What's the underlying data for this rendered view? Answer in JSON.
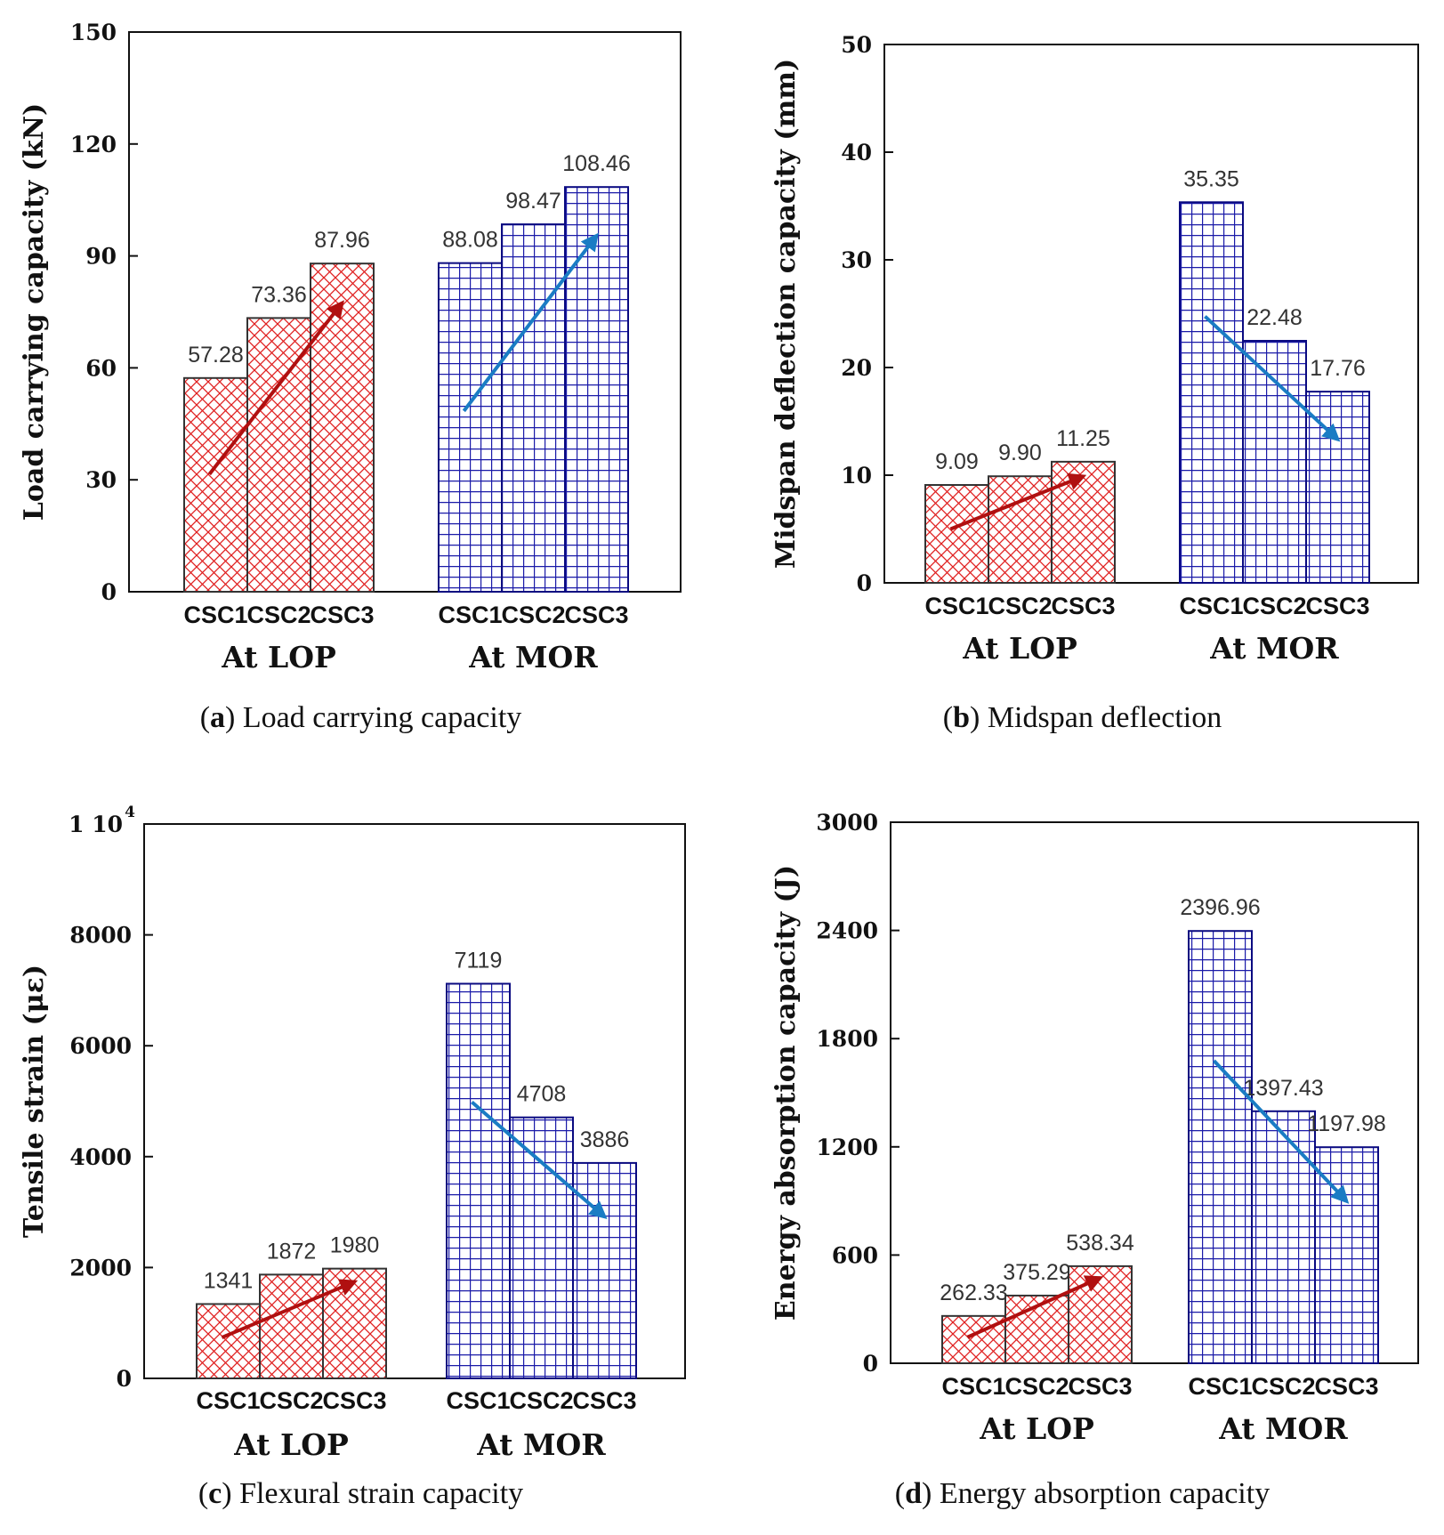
{
  "colors": {
    "lop_color": "#e02020",
    "mor_color": "#1a1aa8",
    "lop_arrow": "#b01010",
    "mor_arrow": "#1a7cc4"
  },
  "chart_data": [
    {
      "id": "a",
      "type": "bar",
      "caption_letter": "a",
      "caption_text": " Load carrying capacity",
      "ylabel": "Load carrying capacity (kN)",
      "ylim": [
        0,
        150
      ],
      "yticks": [
        "0",
        "30",
        "60",
        "90",
        "120",
        "150"
      ],
      "ytick_values": [
        0,
        30,
        60,
        90,
        120,
        150
      ],
      "groups": [
        "At LOP",
        "At MOR"
      ],
      "categories": [
        "CSC1",
        "CSC2",
        "CSC3"
      ],
      "series": [
        {
          "name": "At LOP",
          "values": [
            57.28,
            73.36,
            87.96
          ],
          "labels": [
            "57.28",
            "73.36",
            "87.96"
          ]
        },
        {
          "name": "At MOR",
          "values": [
            88.08,
            98.47,
            108.46
          ],
          "labels": [
            "88.08",
            "98.47",
            "108.46"
          ]
        }
      ],
      "trend": [
        "increasing",
        "increasing"
      ]
    },
    {
      "id": "b",
      "type": "bar",
      "caption_letter": "b",
      "caption_text": " Midspan deflection",
      "ylabel": "Midspan deflection capacity (mm)",
      "ylim": [
        0,
        50
      ],
      "yticks": [
        "0",
        "10",
        "20",
        "30",
        "40",
        "50"
      ],
      "ytick_values": [
        0,
        10,
        20,
        30,
        40,
        50
      ],
      "groups": [
        "At LOP",
        "At MOR"
      ],
      "categories": [
        "CSC1",
        "CSC2",
        "CSC3"
      ],
      "series": [
        {
          "name": "At LOP",
          "values": [
            9.09,
            9.9,
            11.25
          ],
          "labels": [
            "9.09",
            "9.90",
            "11.25"
          ]
        },
        {
          "name": "At MOR",
          "values": [
            35.35,
            22.48,
            17.76
          ],
          "labels": [
            "35.35",
            "22.48",
            "17.76"
          ]
        }
      ],
      "trend": [
        "increasing",
        "decreasing"
      ]
    },
    {
      "id": "c",
      "type": "bar",
      "caption_letter": "c",
      "caption_text": " Flexural strain capacity",
      "ylabel": "Tensile strain (με)",
      "ylim": [
        0,
        10000
      ],
      "yticks": [
        "0",
        "2000",
        "4000",
        "6000",
        "8000",
        "1 10"
      ],
      "ytick_values": [
        0,
        2000,
        4000,
        6000,
        8000,
        10000
      ],
      "top_tick_exponent": "4",
      "groups": [
        "At LOP",
        "At MOR"
      ],
      "categories": [
        "CSC1",
        "CSC2",
        "CSC3"
      ],
      "series": [
        {
          "name": "At LOP",
          "values": [
            1341,
            1872,
            1980
          ],
          "labels": [
            "1341",
            "1872",
            "1980"
          ]
        },
        {
          "name": "At MOR",
          "values": [
            7119,
            4708,
            3886
          ],
          "labels": [
            "7119",
            "4708",
            "3886"
          ]
        }
      ],
      "trend": [
        "increasing",
        "decreasing"
      ]
    },
    {
      "id": "d",
      "type": "bar",
      "caption_letter": "d",
      "caption_text": " Energy absorption capacity",
      "ylabel": "Energy absorption capacity (J)",
      "ylim": [
        0,
        3000
      ],
      "yticks": [
        "0",
        "600",
        "1200",
        "1800",
        "2400",
        "3000"
      ],
      "ytick_values": [
        0,
        600,
        1200,
        1800,
        2400,
        3000
      ],
      "groups": [
        "At LOP",
        "At MOR"
      ],
      "categories": [
        "CSC1",
        "CSC2",
        "CSC3"
      ],
      "series": [
        {
          "name": "At LOP",
          "values": [
            262.33,
            375.29,
            538.34
          ],
          "labels": [
            "262.33",
            "375.29",
            "538.34"
          ]
        },
        {
          "name": "At MOR",
          "values": [
            2396.96,
            1397.43,
            1197.98
          ],
          "labels": [
            "2396.96",
            "1397.43",
            "1197.98"
          ]
        }
      ],
      "trend": [
        "increasing",
        "decreasing"
      ]
    }
  ]
}
